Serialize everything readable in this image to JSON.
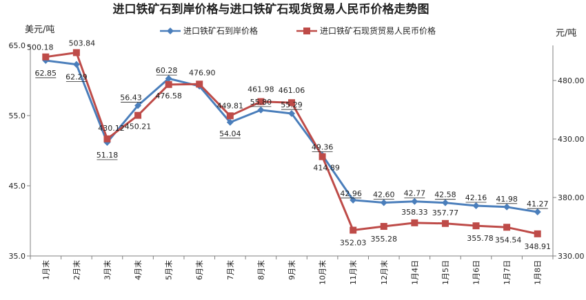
{
  "chart_data": {
    "type": "line",
    "title": "进口铁矿石到岸价格与进口铁矿石现货贸易人民币价格走势图",
    "y_left_label": "美元/吨",
    "y_right_label": "元/吨",
    "y_left_lim": [
      35.0,
      65.0
    ],
    "y_left_ticks": [
      "35.0",
      "45.0",
      "55.0",
      "65.0"
    ],
    "y_right_lim": [
      330.0,
      510.0
    ],
    "y_right_ticks": [
      "330.00",
      "380.00",
      "430.00",
      "480.00"
    ],
    "grid": false,
    "legend_position": "top",
    "categories": [
      "1月末",
      "2月末",
      "3月末",
      "4月末",
      "5月末",
      "6月末",
      "7月末",
      "8月末",
      "9月末",
      "10月末",
      "11月末",
      "12月末",
      "1月4日",
      "1月5日",
      "1月6日",
      "1月7日",
      "1月8日"
    ],
    "series": [
      {
        "name": "进口铁矿石到岸价格",
        "axis": "left",
        "color": "#4a7ebb",
        "marker": "diamond",
        "values": [
          62.85,
          62.29,
          51.18,
          56.43,
          60.28,
          59.2,
          54.04,
          55.8,
          55.29,
          49.36,
          42.96,
          42.6,
          42.77,
          42.58,
          42.16,
          41.98,
          41.27
        ],
        "labels": [
          "62.85",
          "62.29",
          "51.18",
          "56.43",
          "60.28",
          "",
          "54.04",
          "55.80",
          "55.29",
          "49.36",
          "42.96",
          "42.60",
          "42.77",
          "42.58",
          "42.16",
          "41.98",
          "41.27"
        ]
      },
      {
        "name": "进口铁矿石现货贸易人民币价格",
        "axis": "right",
        "color": "#be4b48",
        "marker": "square",
        "values": [
          500.18,
          503.84,
          430.12,
          450.21,
          476.58,
          476.9,
          449.81,
          461.98,
          461.06,
          414.89,
          352.03,
          355.28,
          358.33,
          357.77,
          355.78,
          354.54,
          348.91
        ],
        "labels": [
          "500.18",
          "503.84",
          "430.12",
          "450.21",
          "476.58",
          "476.90",
          "449.81",
          "461.98",
          "461.06",
          "414.89",
          "352.03",
          "355.28",
          "358.33",
          "357.77",
          "355.78",
          "354.54",
          "348.91"
        ]
      }
    ]
  }
}
